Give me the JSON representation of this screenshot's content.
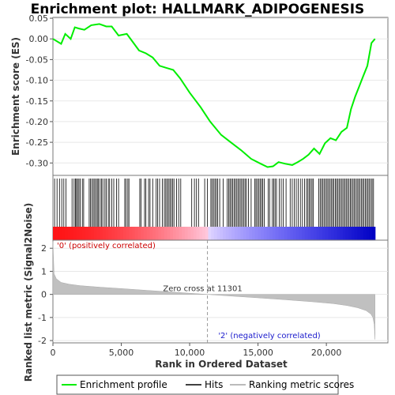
{
  "chart_data": {
    "type": "line",
    "title": "Enrichment plot: HALLMARK_ADIPOGENESIS",
    "xlabel": "Rank in Ordered Dataset",
    "ylabel_es": "Enrichment score (ES)",
    "ylabel_metric": "Ranked list metric (Signal2Noise)",
    "x_ticks": [
      "0",
      "5,000",
      "10,000",
      "15,000",
      "20,000"
    ],
    "es_ticks": [
      "0.05",
      "0.00",
      "-0.05",
      "-0.10",
      "-0.15",
      "-0.20",
      "-0.25",
      "-0.30"
    ],
    "metric_ticks": [
      "2",
      "1",
      "0",
      "-1",
      "-2"
    ],
    "xlim": [
      0,
      24500
    ],
    "es_ylim": [
      -0.33,
      0.052
    ],
    "metric_ylim": [
      -2.1,
      2.35
    ],
    "zero_cross_label": "Zero cross at 11301",
    "zero_cross": 11301,
    "positive_label": "'0' (positively correlated)",
    "negative_label": "'2' (negatively correlated)",
    "series": [
      {
        "name": "Enrichment profile",
        "color": "#00ff00",
        "x": [
          0,
          600,
          900,
          1300,
          1600,
          1900,
          2300,
          2800,
          3400,
          3900,
          4300,
          4800,
          5400,
          5900,
          6300,
          6800,
          7300,
          7800,
          8300,
          8800,
          9300,
          10000,
          10800,
          11500,
          12300,
          13000,
          13800,
          14500,
          15200,
          15700,
          16100,
          16500,
          17000,
          17500,
          17900,
          18300,
          18700,
          19100,
          19500,
          19900,
          20300,
          20700,
          21100,
          21500,
          21800,
          22100,
          22400,
          22700,
          23000,
          23300,
          23560
        ],
        "y": [
          0.0,
          -0.012,
          0.012,
          0.0,
          0.028,
          0.025,
          0.022,
          0.033,
          0.036,
          0.03,
          0.03,
          0.008,
          0.012,
          -0.01,
          -0.028,
          -0.035,
          -0.045,
          -0.065,
          -0.07,
          -0.075,
          -0.095,
          -0.13,
          -0.165,
          -0.2,
          -0.232,
          -0.25,
          -0.27,
          -0.29,
          -0.302,
          -0.31,
          -0.308,
          -0.298,
          -0.302,
          -0.305,
          -0.298,
          -0.29,
          -0.28,
          -0.265,
          -0.278,
          -0.252,
          -0.24,
          -0.245,
          -0.225,
          -0.215,
          -0.17,
          -0.14,
          -0.115,
          -0.09,
          -0.065,
          -0.01,
          0.0
        ]
      },
      {
        "name": "Hits",
        "color": "#000000",
        "positions": [
          120,
          300,
          480,
          650,
          800,
          950,
          1400,
          1550,
          1650,
          1720,
          1800,
          1900,
          2000,
          2150,
          2250,
          2650,
          2750,
          2850,
          2950,
          3050,
          3150,
          3250,
          3330,
          3450,
          3550,
          3650,
          3800,
          3900,
          4050,
          4150,
          4300,
          4450,
          4650,
          4800,
          5250,
          5350,
          5480,
          5560,
          6350,
          6450,
          6700,
          6800,
          7000,
          7100,
          7300,
          7550,
          7650,
          7800,
          8000,
          8150,
          8250,
          8350,
          8450,
          8550,
          8650,
          8750,
          8850,
          9050,
          9200,
          9350,
          10150,
          10350,
          10500,
          10650,
          11100,
          11300,
          11550,
          11650,
          11750,
          11850,
          11950,
          12050,
          12200,
          12450,
          12750,
          12850,
          12950,
          13050,
          13150,
          13250,
          13350,
          13450,
          13550,
          13650,
          13750,
          13850,
          13950,
          14050,
          14150,
          14300,
          14500,
          14750,
          14850,
          14950,
          15050,
          15150,
          15250,
          15350,
          15450,
          15750,
          15850,
          16050,
          16150,
          16250,
          16350,
          16550,
          16700,
          16850,
          17050,
          17350,
          17500,
          17650,
          17800,
          17950,
          18100,
          18250,
          18400,
          18550,
          18650,
          18750,
          18850,
          18950,
          19050,
          19450,
          19550,
          19650,
          19750,
          19850,
          19950,
          20050,
          20150,
          20250,
          20350,
          20450,
          20550,
          20650,
          20750,
          20850,
          20950,
          21050,
          21150,
          21250,
          21350,
          21450,
          21550,
          21650,
          21750,
          21850,
          21950,
          22050,
          22150,
          22250,
          22350,
          22450,
          22550,
          22650,
          22750,
          22850,
          22950,
          23050,
          23150,
          23250,
          23350,
          23450
        ]
      },
      {
        "name": "Ranking metric scores",
        "color": "#bbbbbb",
        "x": [
          0,
          80,
          250,
          600,
          1200,
          2000,
          3500,
          5000,
          7000,
          9000,
          11301,
          13000,
          15000,
          17000,
          19000,
          20500,
          21500,
          22300,
          22900,
          23250,
          23400,
          23500,
          23560
        ],
        "y": [
          2.3,
          0.9,
          0.68,
          0.52,
          0.44,
          0.38,
          0.31,
          0.25,
          0.17,
          0.09,
          0.0,
          -0.07,
          -0.15,
          -0.23,
          -0.32,
          -0.4,
          -0.48,
          -0.58,
          -0.7,
          -0.85,
          -1.0,
          -1.3,
          -1.95
        ]
      }
    ],
    "legend_position": "bottom"
  }
}
